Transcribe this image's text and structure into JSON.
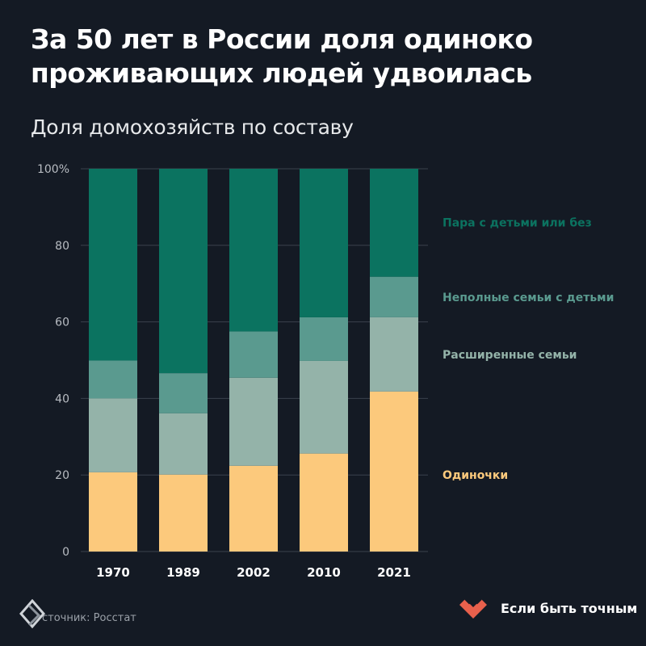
{
  "title_lines": [
    "За 50 лет в России доля одиноко",
    "проживающих людей удвоилась"
  ],
  "subtitle": "Доля домохозяйств по составу",
  "source_text": "сточник: Росстат",
  "brand_name": "Если быть точным",
  "icons": {
    "source_logo": "layered-diamond-logo",
    "brand_logo": "heart-shaped-logo"
  },
  "colors": {
    "background": "#141a24",
    "couples": "#0b7360",
    "single_parent": "#5a9a8f",
    "extended": "#94b3a9",
    "singles": "#fcc97c",
    "brand": "#e8604c"
  },
  "chart_data": {
    "type": "bar",
    "stacked": true,
    "categories": [
      "1970",
      "1989",
      "2002",
      "2010",
      "2021"
    ],
    "series": [
      {
        "name": "Одиночки",
        "values": [
          20.7,
          20.1,
          22.4,
          25.6,
          41.8
        ],
        "color": "#fcc97c"
      },
      {
        "name": "Расширенные семьи",
        "values": [
          19.3,
          16.0,
          23.0,
          24.2,
          19.4
        ],
        "color": "#94b3a9"
      },
      {
        "name": "Неполные семьи с детьми",
        "values": [
          9.9,
          10.5,
          12.1,
          11.4,
          10.6
        ],
        "color": "#5a9a8f"
      },
      {
        "name": "Пара с детьми или без",
        "values": [
          50.1,
          53.4,
          42.5,
          38.8,
          28.2
        ],
        "color": "#0b7360"
      }
    ],
    "legend_label_positions": [
      20,
      51.5,
      66.5,
      86
    ],
    "y_ticks": [
      "0",
      "20",
      "40",
      "60",
      "80",
      "100%"
    ],
    "y_tick_values": [
      0,
      20,
      40,
      60,
      80,
      100
    ],
    "ylim": [
      0,
      100
    ],
    "grid": true,
    "legend": "right"
  }
}
